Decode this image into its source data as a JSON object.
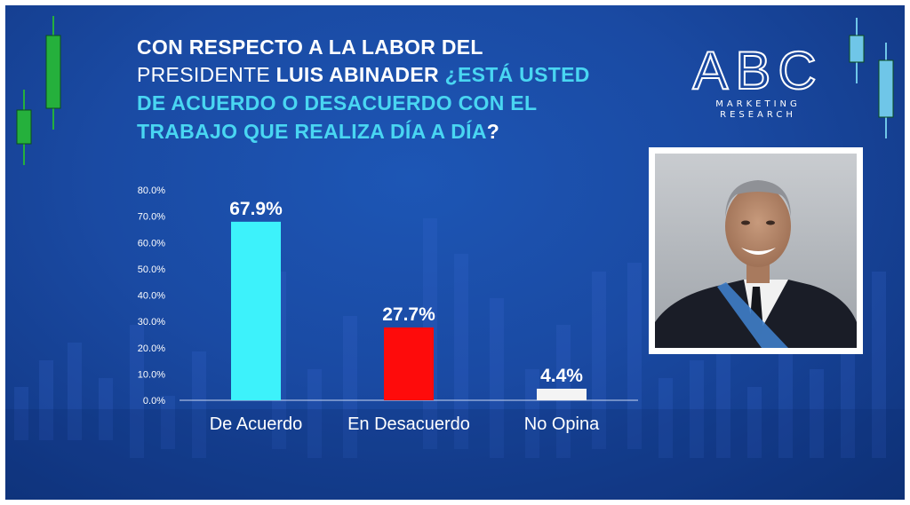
{
  "header": {
    "line1": "CON RESPECTO A LA LABOR DEL",
    "line2_reg": "PRESIDENTE ",
    "line2_bold": "LUIS ABINADER ",
    "line2_cyan": "¿ESTÁ USTED",
    "line3": "DE ACUERDO O DESACUERDO CON EL",
    "line4_cyan": "TRABAJO QUE REALIZA DÍA A DÍA",
    "line4_q": "?"
  },
  "logo": {
    "letters": "ABC",
    "line1": "MARKETING",
    "line2": "RESEARCH"
  },
  "colors": {
    "background": "#1a4aa3",
    "title_white": "#ffffff",
    "title_cyan": "#49d6f2",
    "candle_green": "#25b03c",
    "candle_blue": "#6fc6e8"
  },
  "chart_data": {
    "type": "bar",
    "categories": [
      "De Acuerdo",
      "En Desacuerdo",
      "No Opina"
    ],
    "values": [
      67.9,
      27.7,
      4.4
    ],
    "value_labels": [
      "67.9%",
      "27.7%",
      "4.4%"
    ],
    "colors": [
      "#3df2fb",
      "#fe0b0b",
      "#f4f4f4"
    ],
    "ylim": [
      0,
      80
    ],
    "yticks": [
      "0.0%",
      "10.0%",
      "20.0%",
      "30.0%",
      "40.0%",
      "50.0%",
      "60.0%",
      "70.0%",
      "80.0%"
    ],
    "grid": false,
    "legend": "none"
  }
}
